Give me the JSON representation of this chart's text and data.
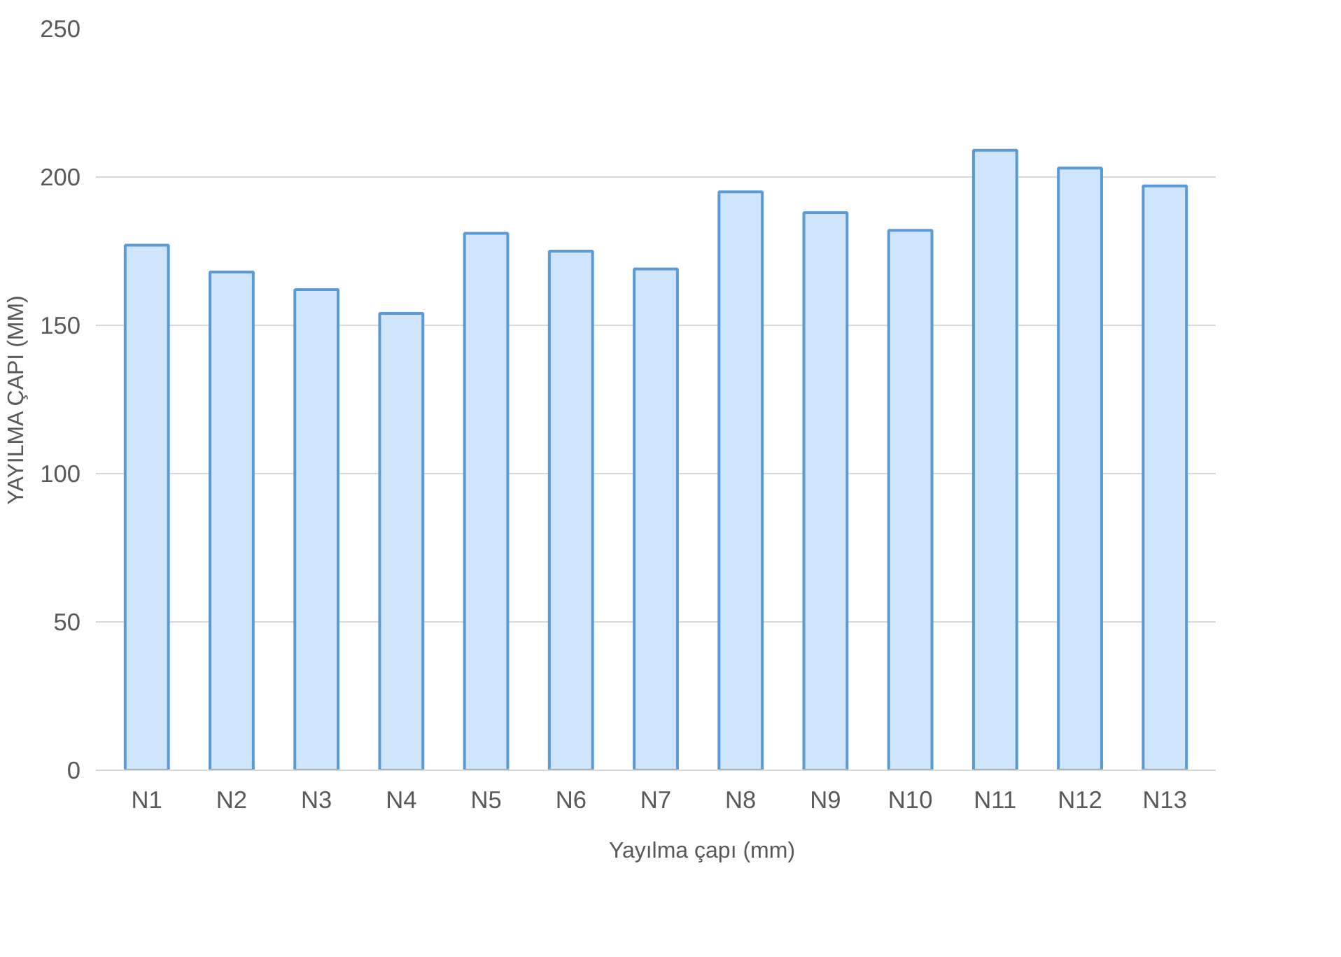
{
  "chart_data": {
    "type": "bar",
    "ylabel": "YAYILMA ÇAPI (MM)",
    "categories": [
      "N1",
      "N2",
      "N3",
      "N4",
      "N5",
      "N6",
      "N7",
      "N8",
      "N9",
      "N10",
      "N11",
      "N12",
      "N13"
    ],
    "series": [
      {
        "name": "Yayılma çapı (mm)",
        "color": "#cfe5fc",
        "values": [
          177,
          168,
          162,
          154,
          181,
          175,
          169,
          195,
          188,
          182,
          209,
          203,
          197
        ]
      }
    ],
    "ylim": [
      0,
      250
    ],
    "yticks": [
      0,
      50,
      100,
      150,
      200,
      250
    ],
    "grid": "y",
    "legend": "bottom"
  }
}
